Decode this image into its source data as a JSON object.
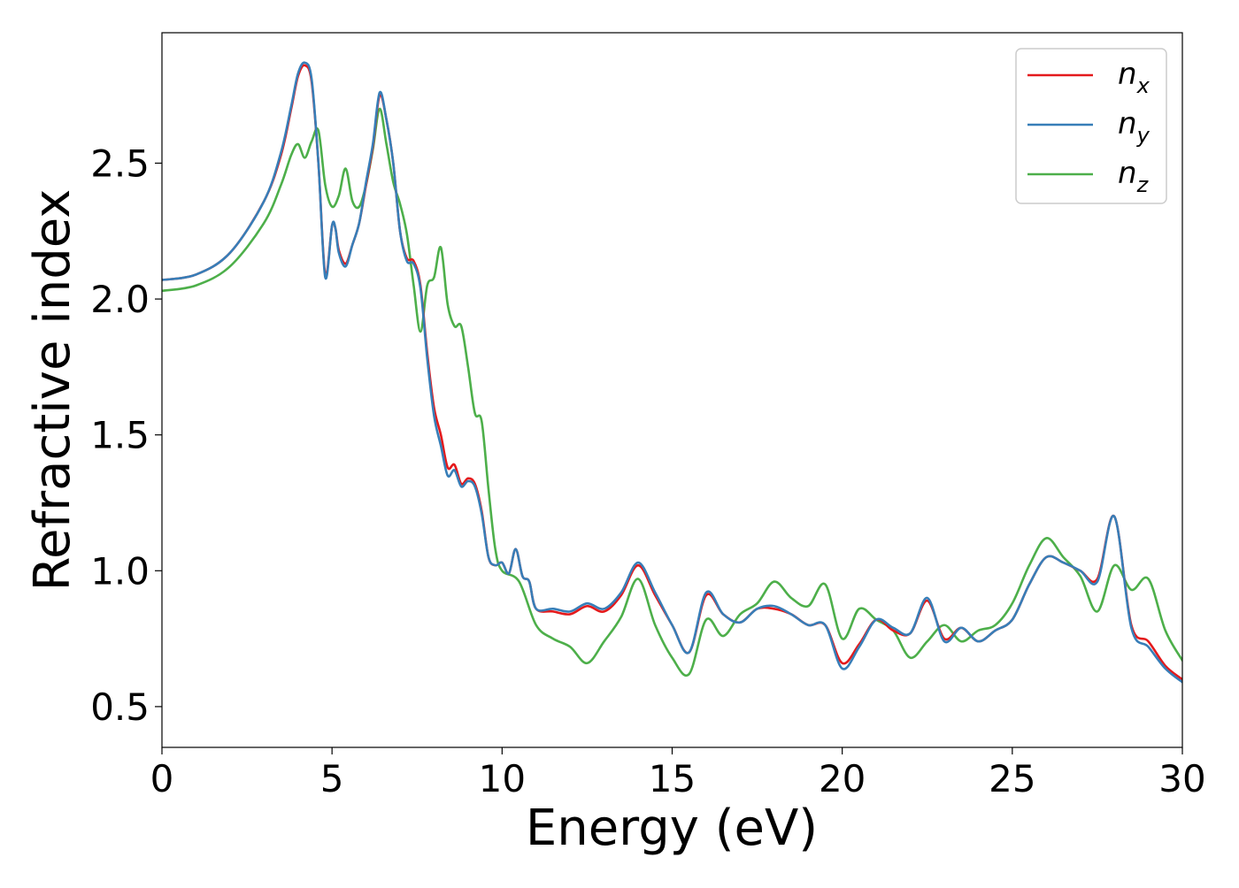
{
  "chart_data": {
    "type": "line",
    "xlabel": "Energy (eV)",
    "ylabel": "Refractive index",
    "xlim": [
      0,
      30
    ],
    "ylim": [
      0.35,
      2.98
    ],
    "xticks": [
      0,
      5,
      10,
      15,
      20,
      25,
      30
    ],
    "yticks": [
      0.5,
      1.0,
      1.5,
      2.0,
      2.5
    ],
    "xtick_labels": [
      "0",
      "5",
      "10",
      "15",
      "20",
      "25",
      "30"
    ],
    "ytick_labels": [
      "0.5",
      "1.0",
      "1.5",
      "2.0",
      "2.5"
    ],
    "grid": false,
    "legend_position": "top-right",
    "series": [
      {
        "name": "n",
        "subscript": "x",
        "color": "#e41a1c",
        "x": [
          0,
          1,
          2,
          3,
          3.5,
          3.8,
          4.0,
          4.2,
          4.4,
          4.6,
          4.8,
          5.0,
          5.1,
          5.2,
          5.4,
          5.6,
          5.8,
          6.0,
          6.2,
          6.4,
          6.6,
          6.8,
          7.0,
          7.2,
          7.4,
          7.6,
          7.8,
          8.0,
          8.2,
          8.4,
          8.6,
          8.8,
          9.0,
          9.2,
          9.4,
          9.6,
          9.8,
          10.0,
          10.2,
          10.4,
          10.6,
          10.8,
          11.0,
          11.5,
          12.0,
          12.5,
          13.0,
          13.5,
          14.0,
          14.5,
          15.0,
          15.5,
          16.0,
          16.5,
          17.0,
          17.5,
          18.0,
          18.5,
          19.0,
          19.5,
          20.0,
          20.5,
          21.0,
          21.5,
          22.0,
          22.5,
          23.0,
          23.5,
          24.0,
          24.5,
          25.0,
          25.5,
          26.0,
          26.5,
          27.0,
          27.5,
          28.0,
          28.5,
          29.0,
          29.5,
          30.0
        ],
        "y": [
          2.07,
          2.09,
          2.17,
          2.36,
          2.53,
          2.7,
          2.82,
          2.86,
          2.8,
          2.5,
          2.09,
          2.27,
          2.26,
          2.18,
          2.13,
          2.2,
          2.28,
          2.42,
          2.56,
          2.75,
          2.66,
          2.5,
          2.25,
          2.15,
          2.14,
          2.05,
          1.8,
          1.6,
          1.5,
          1.38,
          1.39,
          1.32,
          1.34,
          1.32,
          1.22,
          1.05,
          1.02,
          1.03,
          0.99,
          1.08,
          0.98,
          0.96,
          0.86,
          0.85,
          0.84,
          0.87,
          0.85,
          0.91,
          1.02,
          0.91,
          0.8,
          0.7,
          0.91,
          0.84,
          0.81,
          0.86,
          0.86,
          0.84,
          0.8,
          0.8,
          0.66,
          0.73,
          0.82,
          0.78,
          0.77,
          0.89,
          0.75,
          0.79,
          0.74,
          0.78,
          0.82,
          0.95,
          1.05,
          1.03,
          1.0,
          0.97,
          1.2,
          0.8,
          0.74,
          0.65,
          0.6
        ]
      },
      {
        "name": "n",
        "subscript": "y",
        "color": "#377eb8",
        "x": [
          0,
          1,
          2,
          3,
          3.5,
          3.8,
          4.0,
          4.2,
          4.4,
          4.6,
          4.8,
          5.0,
          5.1,
          5.2,
          5.4,
          5.6,
          5.8,
          6.0,
          6.2,
          6.4,
          6.6,
          6.8,
          7.0,
          7.2,
          7.4,
          7.6,
          7.8,
          8.0,
          8.2,
          8.4,
          8.6,
          8.8,
          9.0,
          9.2,
          9.4,
          9.6,
          9.8,
          10.0,
          10.2,
          10.4,
          10.6,
          10.8,
          11.0,
          11.5,
          12.0,
          12.5,
          13.0,
          13.5,
          14.0,
          14.5,
          15.0,
          15.5,
          16.0,
          16.5,
          17.0,
          17.5,
          18.0,
          18.5,
          19.0,
          19.5,
          20.0,
          20.5,
          21.0,
          21.5,
          22.0,
          22.5,
          23.0,
          23.5,
          24.0,
          24.5,
          25.0,
          25.5,
          26.0,
          26.5,
          27.0,
          27.5,
          28.0,
          28.5,
          29.0,
          29.5,
          30.0
        ],
        "y": [
          2.07,
          2.09,
          2.17,
          2.36,
          2.54,
          2.71,
          2.83,
          2.87,
          2.81,
          2.5,
          2.08,
          2.27,
          2.26,
          2.17,
          2.12,
          2.2,
          2.28,
          2.43,
          2.57,
          2.76,
          2.66,
          2.5,
          2.25,
          2.14,
          2.13,
          2.04,
          1.78,
          1.57,
          1.46,
          1.35,
          1.37,
          1.31,
          1.33,
          1.31,
          1.21,
          1.05,
          1.02,
          1.03,
          0.99,
          1.08,
          0.98,
          0.96,
          0.86,
          0.86,
          0.85,
          0.88,
          0.86,
          0.92,
          1.03,
          0.92,
          0.8,
          0.7,
          0.92,
          0.84,
          0.81,
          0.86,
          0.87,
          0.84,
          0.8,
          0.8,
          0.64,
          0.72,
          0.82,
          0.79,
          0.77,
          0.9,
          0.74,
          0.79,
          0.74,
          0.78,
          0.82,
          0.95,
          1.05,
          1.03,
          1.0,
          0.96,
          1.2,
          0.79,
          0.72,
          0.64,
          0.59
        ]
      },
      {
        "name": "n",
        "subscript": "z",
        "color": "#4daf4a",
        "x": [
          0,
          1,
          2,
          3,
          3.5,
          3.8,
          4.0,
          4.2,
          4.4,
          4.6,
          4.8,
          5.0,
          5.2,
          5.4,
          5.6,
          5.8,
          6.0,
          6.2,
          6.4,
          6.6,
          6.8,
          7.0,
          7.2,
          7.4,
          7.6,
          7.8,
          8.0,
          8.2,
          8.4,
          8.6,
          8.8,
          9.0,
          9.2,
          9.4,
          9.6,
          9.8,
          10.0,
          10.5,
          11.0,
          11.5,
          12.0,
          12.5,
          13.0,
          13.5,
          14.0,
          14.5,
          15.0,
          15.5,
          16.0,
          16.5,
          17.0,
          17.5,
          18.0,
          18.5,
          19.0,
          19.5,
          20.0,
          20.5,
          21.0,
          21.5,
          22.0,
          22.5,
          23.0,
          23.5,
          24.0,
          24.5,
          25.0,
          25.5,
          26.0,
          26.5,
          27.0,
          27.5,
          28.0,
          28.5,
          29.0,
          29.5,
          30.0
        ],
        "y": [
          2.03,
          2.05,
          2.12,
          2.28,
          2.42,
          2.53,
          2.57,
          2.52,
          2.58,
          2.62,
          2.42,
          2.34,
          2.38,
          2.48,
          2.36,
          2.34,
          2.42,
          2.55,
          2.7,
          2.57,
          2.43,
          2.35,
          2.24,
          2.05,
          1.88,
          2.05,
          2.08,
          2.19,
          1.98,
          1.9,
          1.9,
          1.75,
          1.58,
          1.55,
          1.3,
          1.08,
          1.0,
          0.96,
          0.8,
          0.75,
          0.72,
          0.66,
          0.74,
          0.83,
          0.97,
          0.8,
          0.68,
          0.62,
          0.82,
          0.76,
          0.84,
          0.88,
          0.96,
          0.9,
          0.87,
          0.95,
          0.75,
          0.86,
          0.82,
          0.78,
          0.68,
          0.74,
          0.8,
          0.74,
          0.78,
          0.8,
          0.88,
          1.02,
          1.12,
          1.05,
          0.98,
          0.85,
          1.02,
          0.93,
          0.97,
          0.78,
          0.67
        ]
      }
    ]
  }
}
